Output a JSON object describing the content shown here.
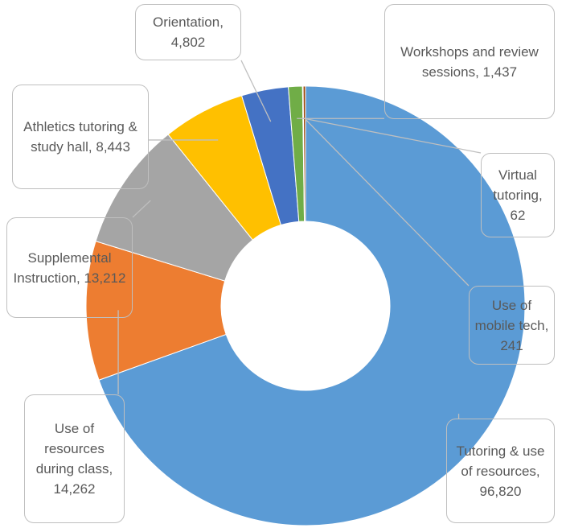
{
  "chart_data": {
    "type": "donut",
    "categories": [
      "Tutoring & use of resources",
      "Use of resources during class",
      "Supplemental Instruction",
      "Athletics tutoring & study hall",
      "Orientation",
      "Workshops and review sessions",
      "Virtual tutoring",
      "Use of mobile tech"
    ],
    "values": [
      96820,
      14262,
      13212,
      8443,
      4802,
      1437,
      62,
      241
    ],
    "value_labels": [
      "96,820",
      "14,262",
      "13,212",
      "8,443",
      "4,802",
      "1,437",
      "62",
      "241"
    ],
    "colors": [
      "#5b9bd5",
      "#ed7d31",
      "#a5a5a5",
      "#ffc000",
      "#4472c4",
      "#70ad47",
      "#264478",
      "#9e480e"
    ]
  }
}
